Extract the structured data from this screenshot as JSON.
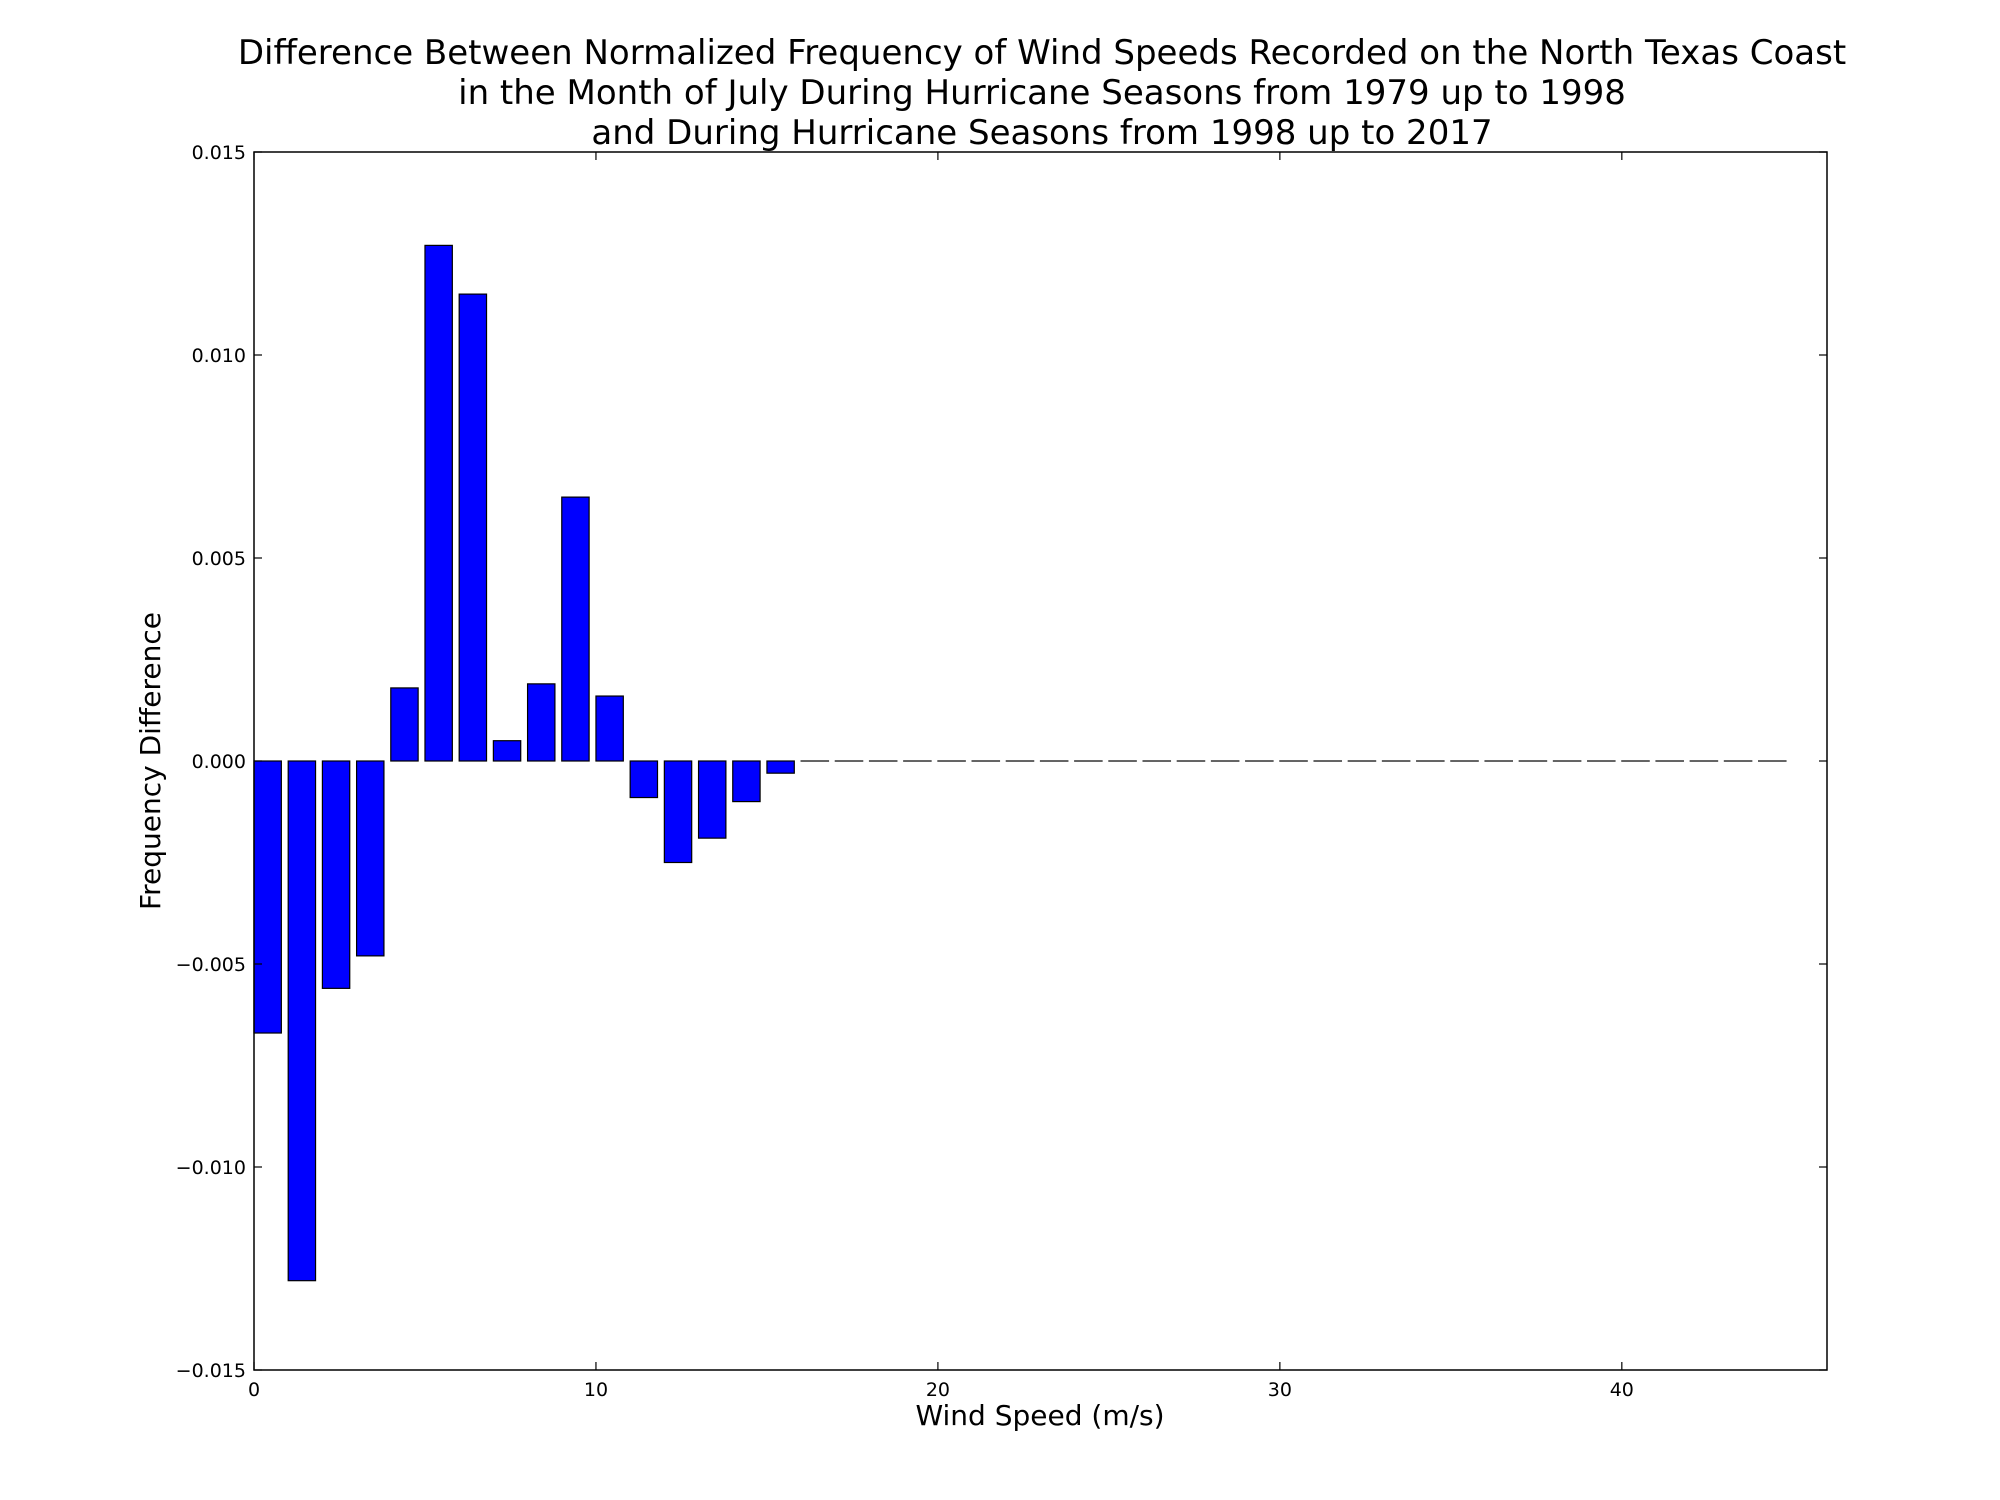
{
  "chart_data": {
    "type": "bar",
    "title_lines": [
      "Difference Between Normalized Frequency of Wind Speeds Recorded on the North Texas Coast",
      "in the Month of July During Hurricane Seasons from 1979 up to 1998",
      "and During Hurricane Seasons from 1998 up to 2017"
    ],
    "xlabel": "Wind Speed (m/s)",
    "ylabel": "Frequency Difference",
    "xlim": [
      0,
      46
    ],
    "ylim": [
      -0.015,
      0.015
    ],
    "x_ticks": [
      0,
      10,
      20,
      30,
      40
    ],
    "x_tick_labels": [
      "0",
      "10",
      "20",
      "30",
      "40"
    ],
    "y_ticks": [
      -0.015,
      -0.01,
      -0.005,
      0.0,
      0.005,
      0.01,
      0.015
    ],
    "y_tick_labels": [
      "−0.015",
      "−0.010",
      "−0.005",
      "0.000",
      "0.005",
      "0.010",
      "0.015"
    ],
    "bar_width": 0.8,
    "bar_color": "#0000ff",
    "bar_edge_color": "#000000",
    "x": [
      0,
      1,
      2,
      3,
      4,
      5,
      6,
      7,
      8,
      9,
      10,
      11,
      12,
      13,
      14,
      15,
      16,
      17,
      18,
      19,
      20,
      21,
      22,
      23,
      24,
      25,
      26,
      27,
      28,
      29,
      30,
      31,
      32,
      33,
      34,
      35,
      36,
      37,
      38,
      39,
      40,
      41,
      42,
      43,
      44
    ],
    "values": [
      -0.0067,
      -0.0128,
      -0.0056,
      -0.0048,
      0.0018,
      0.0127,
      0.0115,
      0.0005,
      0.0019,
      0.0065,
      0.0016,
      -0.0009,
      -0.0025,
      -0.0019,
      -0.001,
      -0.0003,
      0,
      0,
      0,
      0,
      0,
      0,
      0,
      0,
      0,
      0,
      0,
      0,
      0,
      0,
      0,
      0,
      0,
      0,
      0,
      0,
      0,
      0,
      0,
      0,
      0,
      0,
      0,
      0,
      0
    ],
    "grid": false,
    "legend": "none"
  }
}
